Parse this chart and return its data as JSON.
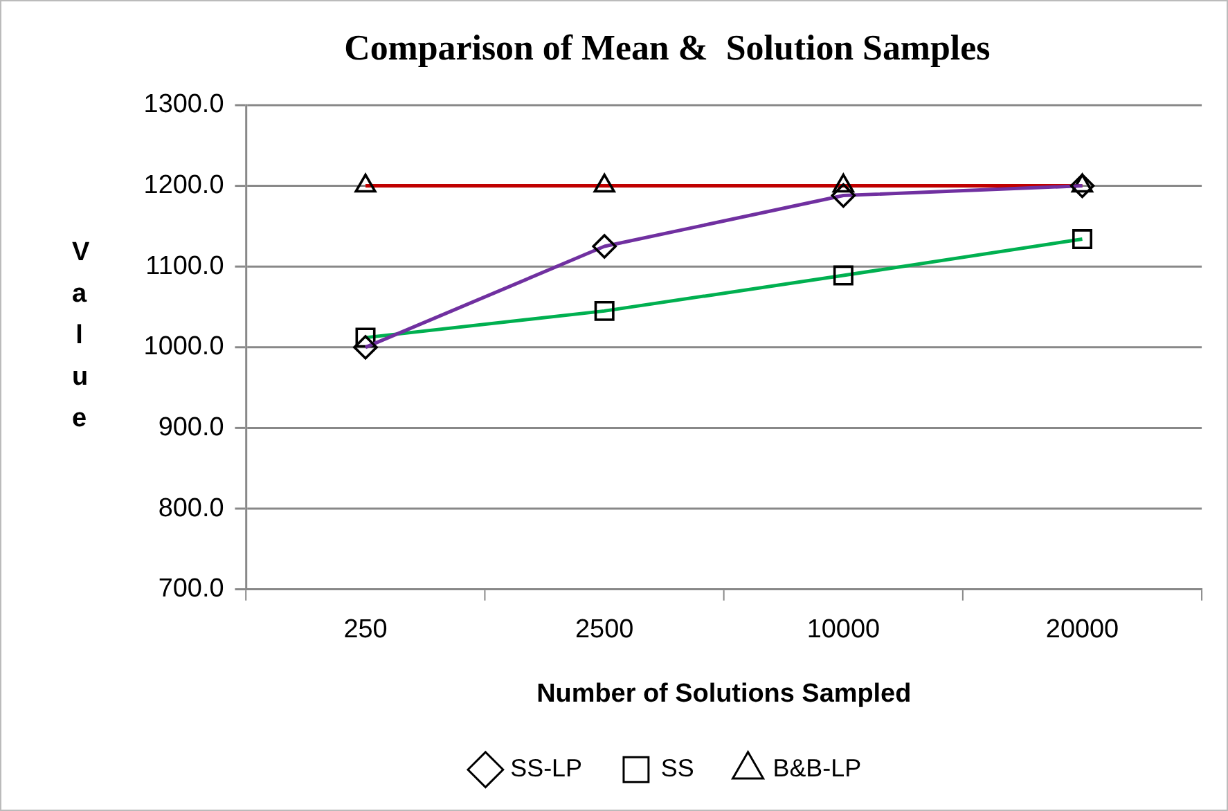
{
  "chart_data": {
    "type": "line",
    "title": "Comparison of Mean &  Solution Samples",
    "xlabel": "Number of Solutions Sampled",
    "ylabel": "Value",
    "categories": [
      "250",
      "2500",
      "10000",
      "20000"
    ],
    "series": [
      {
        "name": "SS-LP",
        "color": "#7030a0",
        "marker": "diamond",
        "values": [
          1000,
          1125,
          1188,
          1200
        ]
      },
      {
        "name": "SS",
        "color": "#00b050",
        "marker": "square",
        "values": [
          1012,
          1045,
          1089,
          1134
        ]
      },
      {
        "name": "B&B-LP",
        "color": "#c00000",
        "marker": "triangle",
        "values": [
          1200,
          1200,
          1200,
          1200
        ]
      }
    ],
    "ylim": [
      700,
      1300
    ],
    "yticks": [
      {
        "value": 700,
        "label": "700.0"
      },
      {
        "value": 800,
        "label": "800.0"
      },
      {
        "value": 900,
        "label": "900.0"
      },
      {
        "value": 1000,
        "label": "1000.0"
      },
      {
        "value": 1100,
        "label": "1100.0"
      },
      {
        "value": 1200,
        "label": "1200.0"
      },
      {
        "value": 1300,
        "label": "1300.0"
      }
    ],
    "grid": "y",
    "legend": "bottom",
    "line_style": "solid"
  }
}
